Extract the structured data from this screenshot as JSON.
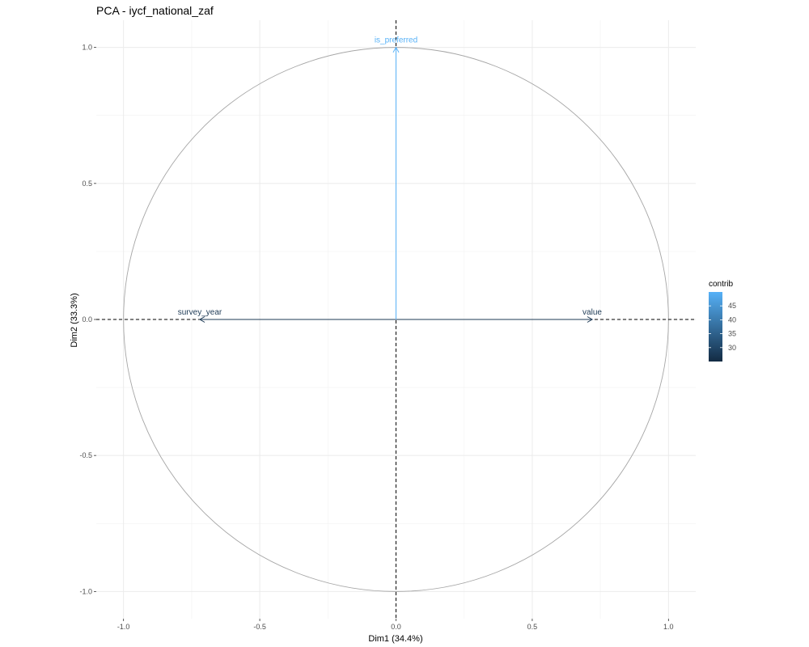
{
  "chart_data": {
    "type": "scatter",
    "title": "PCA - iycf_national_zaf",
    "xlabel": "Dim1 (34.4%)",
    "ylabel": "Dim2 (33.3%)",
    "xlim": [
      -1.1,
      1.1
    ],
    "ylim": [
      -1.1,
      1.1
    ],
    "x_ticks": [
      {
        "value": -1.0,
        "label": "-1.0"
      },
      {
        "value": -0.5,
        "label": "-0.5"
      },
      {
        "value": 0.0,
        "label": "0.0"
      },
      {
        "value": 0.5,
        "label": "0.5"
      },
      {
        "value": 1.0,
        "label": "1.0"
      }
    ],
    "y_ticks": [
      {
        "value": 1.0,
        "label": "1.0"
      },
      {
        "value": 0.5,
        "label": "0.5"
      },
      {
        "value": 0.0,
        "label": "0.0"
      },
      {
        "value": -0.5,
        "label": "-0.5"
      },
      {
        "value": -1.0,
        "label": "-1.0"
      }
    ],
    "grid": true,
    "correlation_circle": true,
    "variables": [
      {
        "name": "survey_year",
        "x": -0.72,
        "y": 0.0,
        "contrib": 25.0,
        "color": "#1d3a55"
      },
      {
        "name": "value",
        "x": 0.72,
        "y": 0.0,
        "contrib": 25.0,
        "color": "#1d3a55"
      },
      {
        "name": "is_preferred",
        "x": 0.0,
        "y": 1.0,
        "contrib": 50.0,
        "color": "#56b1f7"
      }
    ],
    "legend": {
      "title": "contrib",
      "position": "right",
      "gradient_low": "#132b43",
      "gradient_high": "#56b1f7",
      "min": 25,
      "max": 50,
      "ticks": [
        {
          "value": 45,
          "label": "45"
        },
        {
          "value": 40,
          "label": "40"
        },
        {
          "value": 35,
          "label": "35"
        },
        {
          "value": 30,
          "label": "30"
        }
      ]
    }
  }
}
